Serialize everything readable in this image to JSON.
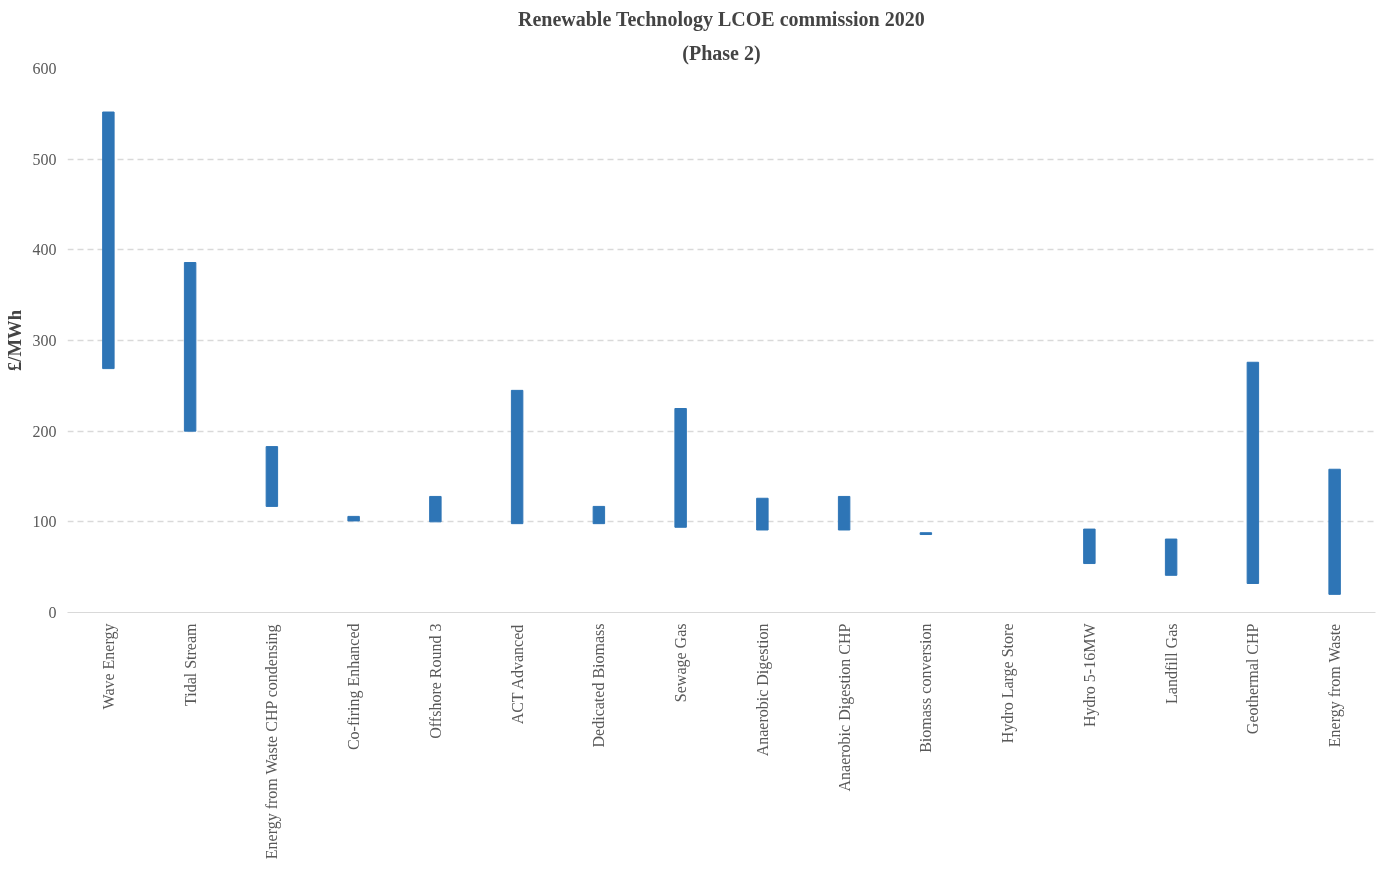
{
  "chart_data": {
    "type": "bar",
    "title": "Renewable Technology LCOE commission 2020",
    "subtitle": "(Phase 2)",
    "ylabel": "£/MWh",
    "categories": [
      "Wave Energy",
      "Tidal Stream",
      "Energy from Waste CHP condensing",
      "Co-firing Enhanced",
      "Offshore Round 3",
      "ACT Advanced",
      "Dedicated Biomass",
      "Sewage Gas",
      "Anaerobic Digestion",
      "Anaerobic Digestion CHP",
      "Biomass conversion",
      "Hydro Large Store",
      "Hydro 5-16MW",
      "Landfill Gas",
      "Geothermal CHP",
      "Energy from Waste"
    ],
    "base": [
      269,
      200,
      117,
      101,
      100,
      98,
      98,
      94,
      91,
      91,
      86,
      null,
      54,
      41,
      32,
      20
    ],
    "values": [
      283,
      186,
      66,
      5,
      28,
      147,
      19,
      131,
      35,
      37,
      2,
      null,
      38,
      40,
      244,
      138
    ],
    "color": "#2e75b6",
    "ylim": [
      0,
      600
    ],
    "yticks": [
      0,
      100,
      200,
      300,
      400,
      500,
      600
    ],
    "grid": "y"
  }
}
